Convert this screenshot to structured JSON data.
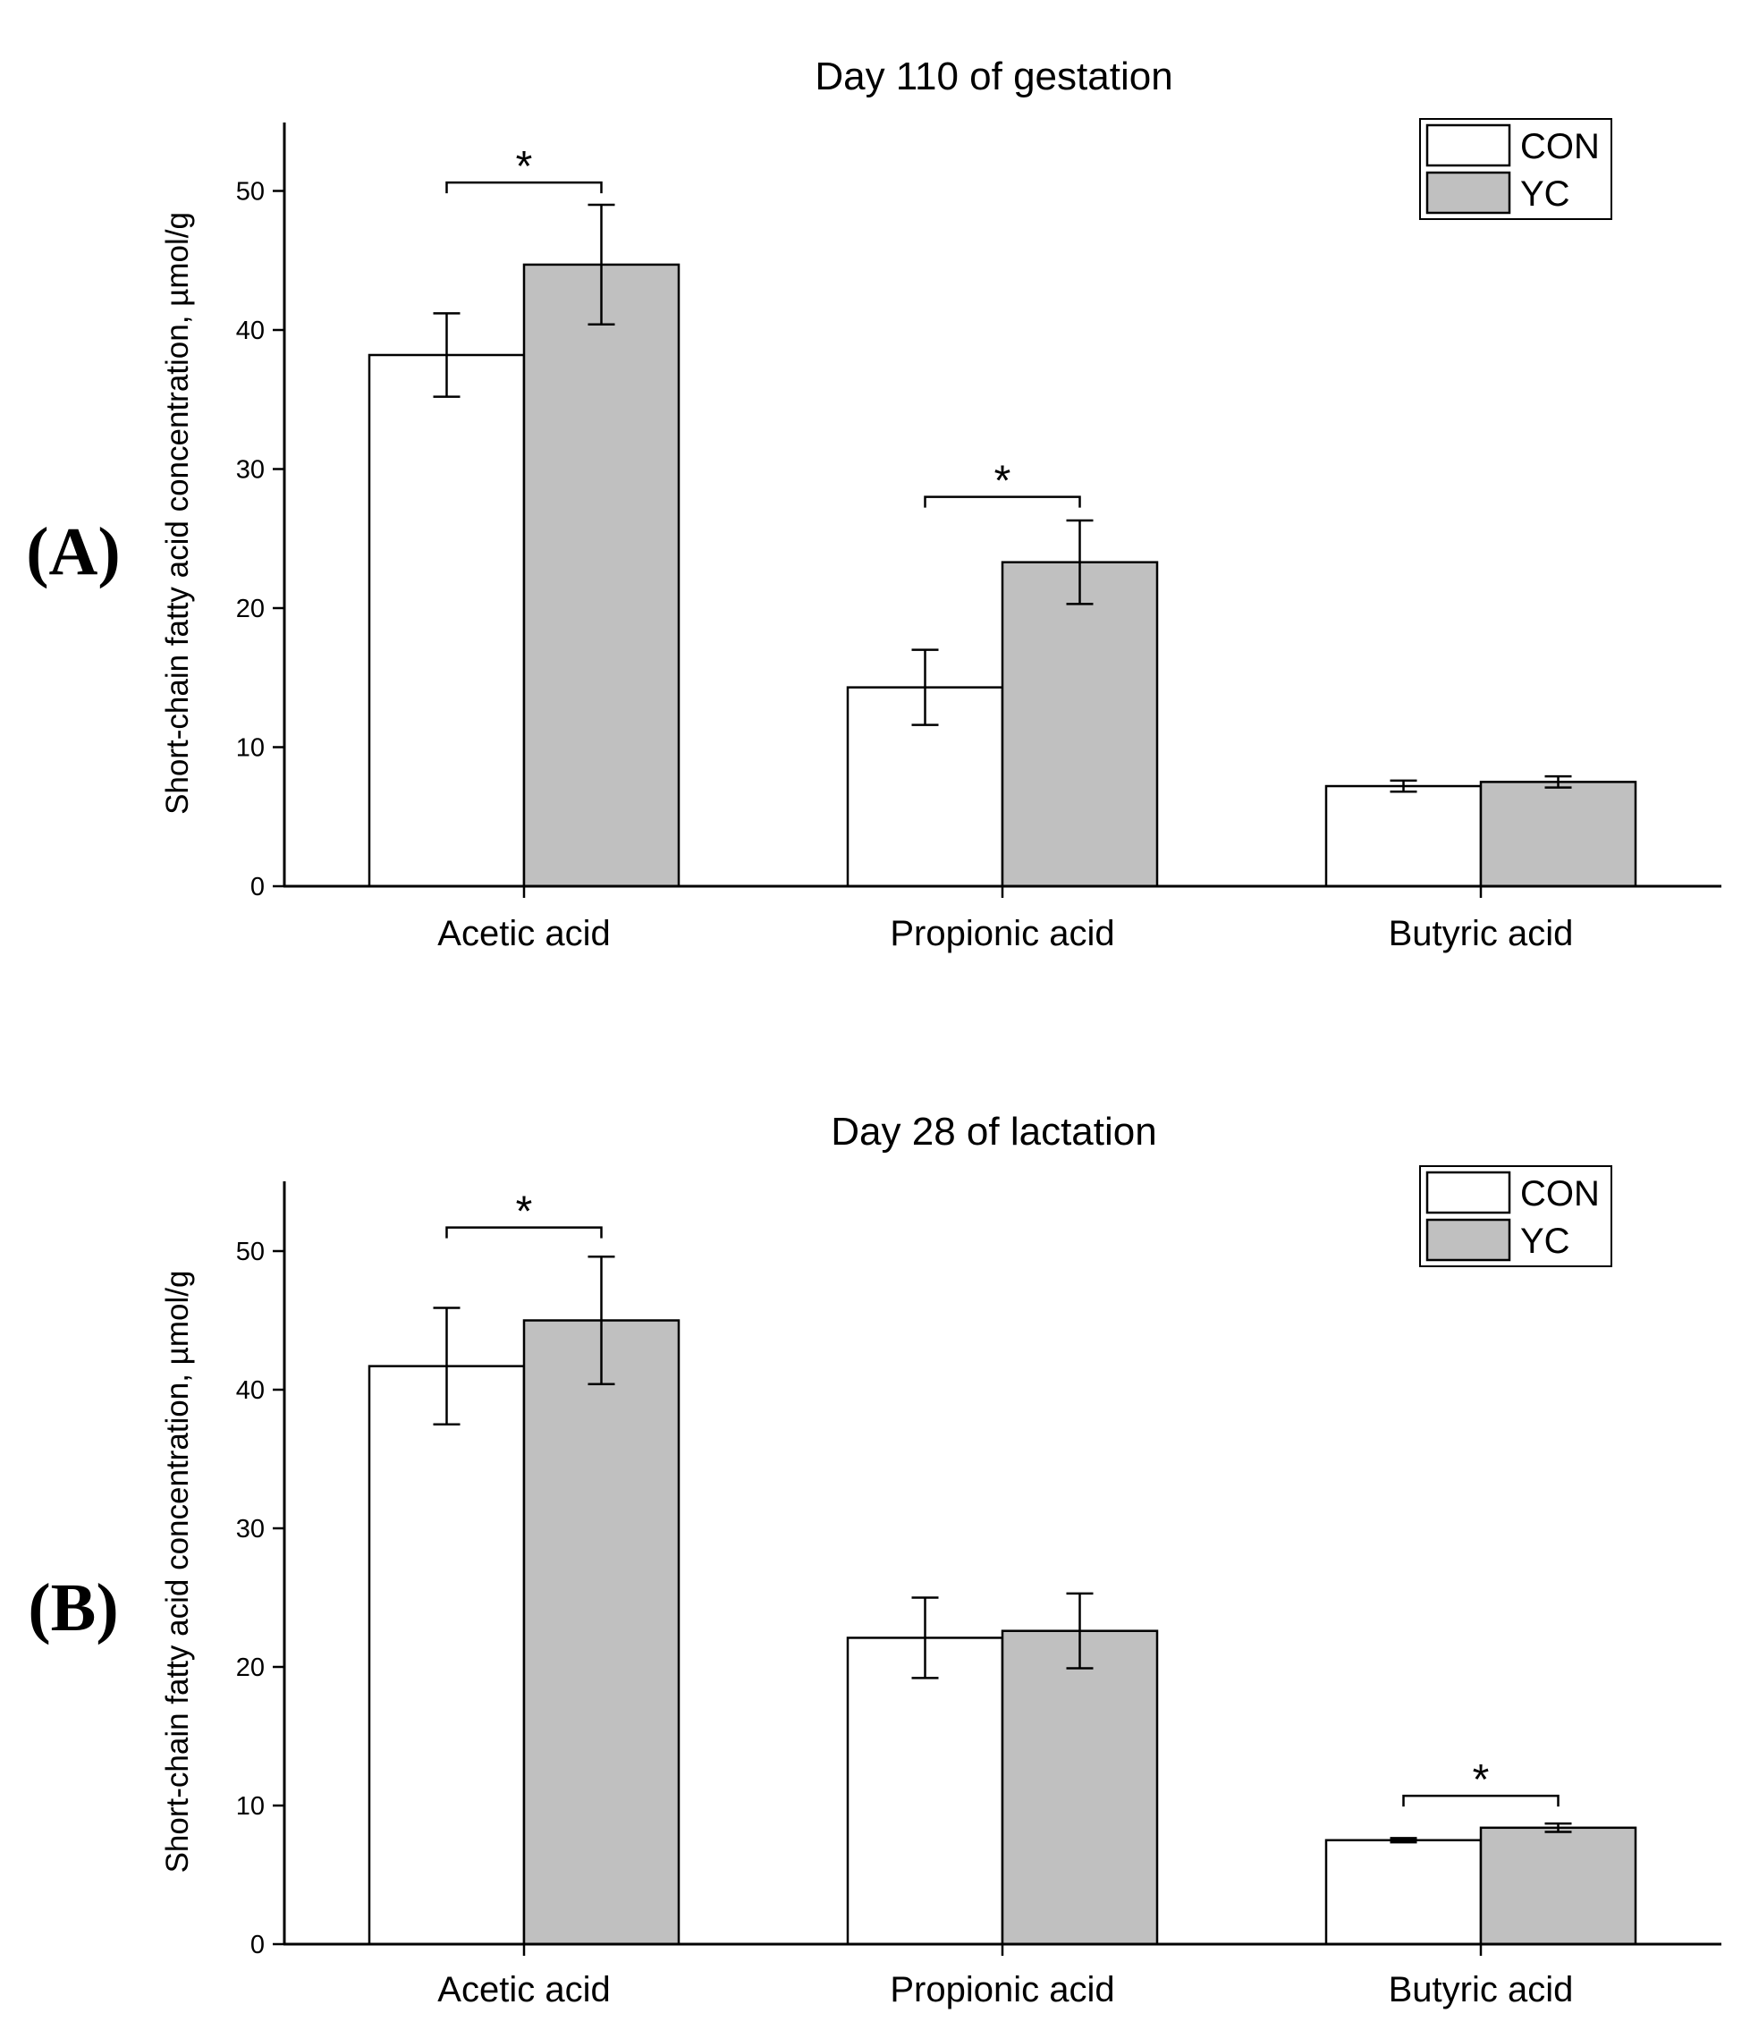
{
  "chart_data": [
    {
      "panel": "(A)",
      "type": "bar",
      "title": "Day 110 of gestation",
      "xlabel": "",
      "ylabel": "Short-chain fatty acid concentration, µmol/g",
      "ylim": [
        0,
        55
      ],
      "yticks": [
        0,
        10,
        20,
        30,
        40,
        50
      ],
      "categories": [
        "Acetic acid",
        "Propionic acid",
        "Butyric acid"
      ],
      "series": [
        {
          "name": "CON",
          "color": "#ffffff",
          "values": [
            38.2,
            14.3,
            7.2
          ],
          "errors": [
            3.0,
            2.7,
            0.4
          ]
        },
        {
          "name": "YC",
          "color": "#c0c0c0",
          "values": [
            44.7,
            23.3,
            7.5
          ],
          "errors": [
            4.3,
            3.0,
            0.4
          ]
        }
      ],
      "legend": {
        "position": "top-right",
        "entries": [
          "CON",
          "YC"
        ]
      },
      "significance": [
        {
          "category": 0,
          "y": 50.6,
          "label": "*"
        },
        {
          "category": 1,
          "y": 28.0,
          "label": "*"
        }
      ]
    },
    {
      "panel": "(B)",
      "type": "bar",
      "title": "Day 28 of lactation",
      "xlabel": "",
      "ylabel": "Short-chain fatty acid concentration, µmol/g",
      "ylim": [
        0,
        55
      ],
      "yticks": [
        0,
        10,
        20,
        30,
        40,
        50
      ],
      "categories": [
        "Acetic acid",
        "Propionic acid",
        "Butyric acid"
      ],
      "series": [
        {
          "name": "CON",
          "color": "#ffffff",
          "values": [
            41.7,
            22.1,
            7.5
          ],
          "errors": [
            4.2,
            2.9,
            0.15
          ]
        },
        {
          "name": "YC",
          "color": "#c0c0c0",
          "values": [
            45.0,
            22.6,
            8.4
          ],
          "errors": [
            4.6,
            2.7,
            0.3
          ]
        }
      ],
      "legend": {
        "position": "top-right",
        "entries": [
          "CON",
          "YC"
        ]
      },
      "significance": [
        {
          "category": 0,
          "y": 51.7,
          "label": "*"
        },
        {
          "category": 2,
          "y": 10.7,
          "label": "*"
        }
      ]
    }
  ]
}
